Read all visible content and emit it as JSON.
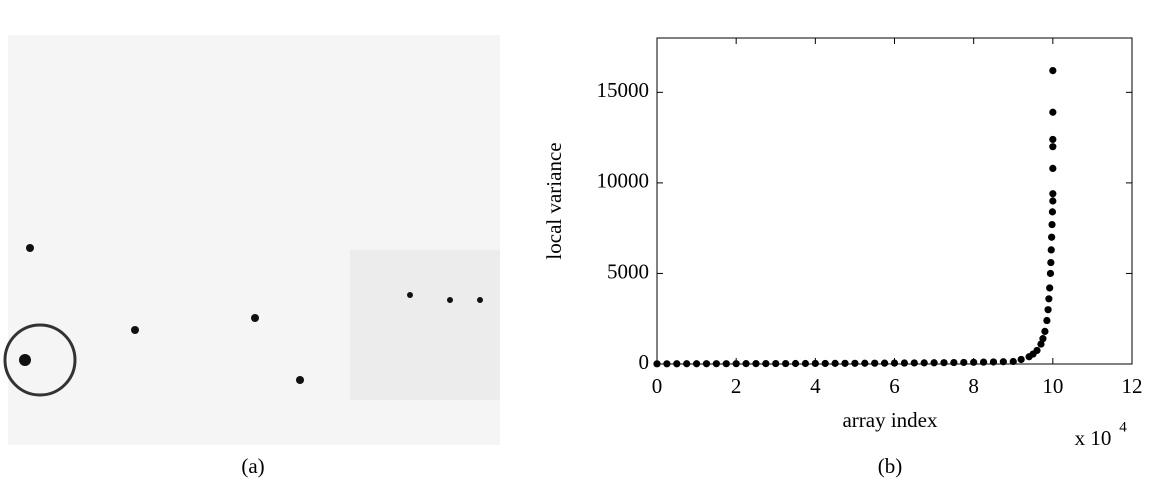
{
  "chart_data": {
    "type": "scatter",
    "x_label": "array index",
    "y_label": "local variance",
    "x_multiplier": "x 10",
    "x_multiplier_exponent": "4",
    "caption": "(b)",
    "color": "#000000",
    "xlim": [
      0,
      12
    ],
    "xticks": [
      0,
      2,
      4,
      6,
      8,
      10,
      12
    ],
    "ylim": [
      0,
      18000
    ],
    "yticks": [
      0,
      5000,
      10000,
      15000
    ],
    "grid": false,
    "x": [
      0,
      0.25,
      0.5,
      0.75,
      1,
      1.25,
      1.5,
      1.75,
      2,
      2.25,
      2.5,
      2.75,
      3,
      3.25,
      3.5,
      3.75,
      4,
      4.25,
      4.5,
      4.75,
      5,
      5.25,
      5.5,
      5.75,
      6,
      6.25,
      6.5,
      6.75,
      7,
      7.25,
      7.5,
      7.75,
      8,
      8.25,
      8.5,
      8.75,
      9,
      9.2,
      9.4,
      9.5,
      9.6,
      9.7,
      9.75,
      9.8,
      9.85,
      9.88,
      9.9,
      9.92,
      9.94,
      9.95,
      9.96,
      9.97,
      9.98,
      9.99,
      10,
      10,
      10,
      10,
      10,
      10,
      10
    ],
    "values": [
      10,
      11,
      12,
      13,
      14,
      15,
      16,
      17,
      18,
      20,
      21,
      22,
      24,
      25,
      27,
      28,
      30,
      32,
      34,
      36,
      38,
      41,
      44,
      47,
      50,
      54,
      58,
      62,
      67,
      72,
      78,
      85,
      93,
      102,
      112,
      124,
      138,
      250,
      400,
      550,
      750,
      1100,
      1400,
      1800,
      2400,
      3000,
      3600,
      4200,
      5000,
      5600,
      6300,
      7000,
      7700,
      8400,
      9000,
      9400,
      10800,
      12000,
      12400,
      13900,
      16200
    ]
  },
  "image_panel": {
    "caption": "(a)"
  }
}
